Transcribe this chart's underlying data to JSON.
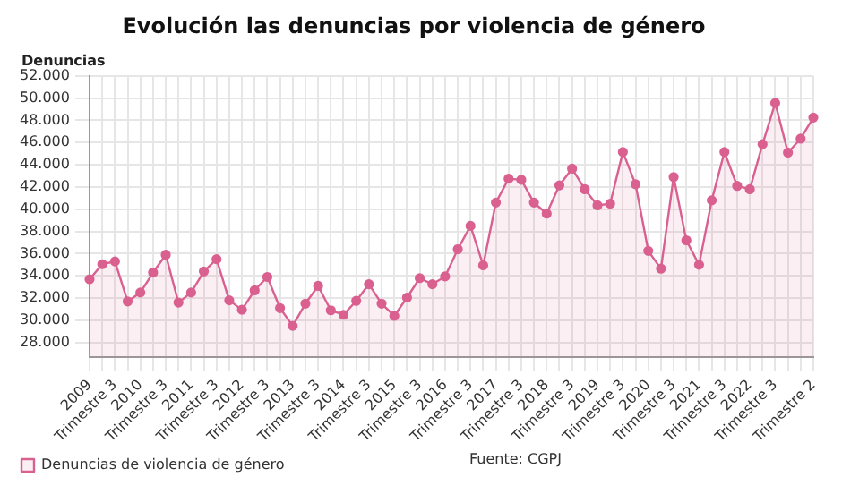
{
  "chart_data": {
    "type": "area",
    "title": "Evolución las denuncias por violencia de género",
    "ylabel": "Denuncias",
    "categories": [
      "2009",
      null,
      "Trimestre 3",
      null,
      "2010",
      null,
      "Trimestre 3",
      null,
      "2011",
      null,
      "Trimestre 3",
      null,
      "2012",
      null,
      "Trimestre 3",
      null,
      "2013",
      null,
      "Trimestre 3",
      null,
      "2014",
      null,
      "Trimestre 3",
      null,
      "2015",
      null,
      "Trimestre 3",
      null,
      "2016",
      null,
      "Trimestre 3",
      null,
      "2017",
      null,
      "Trimestre 3",
      null,
      "2018",
      null,
      "Trimestre 3",
      null,
      "2019",
      null,
      "Trimestre 3",
      null,
      "2020",
      null,
      "Trimestre 3",
      null,
      "2021",
      null,
      "Trimestre 3",
      null,
      "2022",
      null,
      "Trimestre 3",
      null,
      null,
      "Trimestre 2"
    ],
    "series": [
      {
        "name": "Denuncias de violencia de género",
        "color": "#d9608f",
        "values": [
          33700,
          35050,
          35300,
          31700,
          32500,
          34300,
          35900,
          31600,
          32500,
          34400,
          35500,
          31800,
          30950,
          32700,
          33900,
          31100,
          29500,
          31500,
          33100,
          30900,
          30500,
          31750,
          33250,
          31500,
          30400,
          32050,
          33800,
          33250,
          33950,
          36400,
          38500,
          34950,
          40600,
          42750,
          42650,
          40600,
          39600,
          42150,
          43650,
          41800,
          40350,
          40500,
          45150,
          42250,
          36250,
          34650,
          42900,
          37200,
          35000,
          40800,
          45150,
          42100,
          41800,
          45850,
          49550,
          45100,
          46350,
          48250
        ]
      }
    ],
    "ylim": [
      26700,
      52000
    ],
    "yticks": [
      {
        "value": 28000,
        "label": "28.000"
      },
      {
        "value": 30000,
        "label": "30.000"
      },
      {
        "value": 32000,
        "label": "32.000"
      },
      {
        "value": 34000,
        "label": "34.000"
      },
      {
        "value": 36000,
        "label": "36.000"
      },
      {
        "value": 38000,
        "label": "38.000"
      },
      {
        "value": 40000,
        "label": "40.000"
      },
      {
        "value": 42000,
        "label": "42.000"
      },
      {
        "value": 44000,
        "label": "44.000"
      },
      {
        "value": 46000,
        "label": "46.000"
      },
      {
        "value": 48000,
        "label": "48.000"
      },
      {
        "value": 50000,
        "label": "50.000"
      },
      {
        "value": 52000,
        "label": "52.000"
      }
    ],
    "grid": true,
    "legend": "bottom",
    "marker": "circle",
    "line_style": "solid",
    "annotations": [
      "Fuente: CGPJ"
    ]
  }
}
